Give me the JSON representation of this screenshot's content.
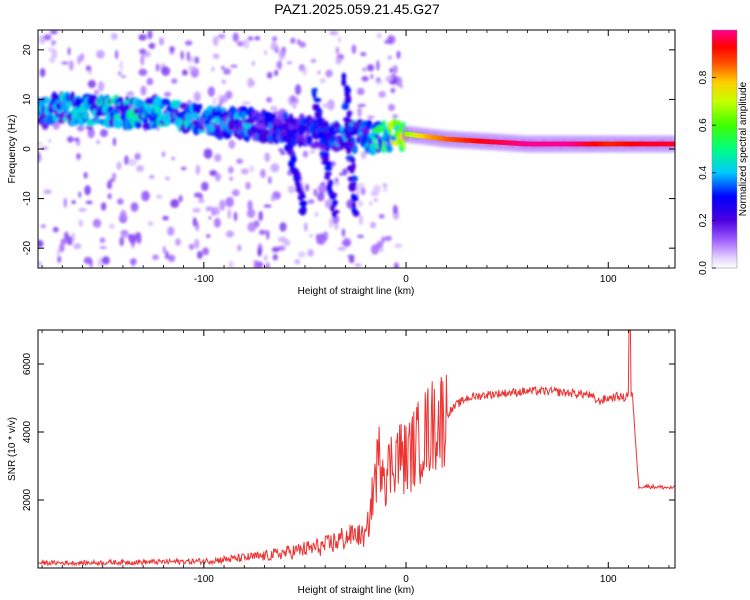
{
  "title": "PAZ1.2025.059.21.45.G27",
  "colorbar": {
    "label": "Normalized spectral amplitude",
    "ticks": [
      "0.0",
      "0.2",
      "0.4",
      "0.6",
      "0.8"
    ],
    "tick_values": [
      0.0,
      0.2,
      0.4,
      0.6,
      0.8
    ],
    "range": [
      0,
      1
    ]
  },
  "chart_data": [
    {
      "type": "heatmap",
      "xlabel": "Height of straight line (km)",
      "ylabel": "Frequency (Hz)",
      "xlim": [
        -182,
        133
      ],
      "ylim": [
        -24,
        24
      ],
      "xticks": [
        -100,
        0,
        100
      ],
      "yticks": [
        -20,
        -10,
        0,
        10,
        20
      ],
      "xtick_labels": [
        "-100",
        "0",
        "100"
      ],
      "ytick_labels": [
        "-20",
        "-10",
        "0",
        "10",
        "20"
      ],
      "ridge": {
        "x": [
          -180,
          -160,
          -140,
          -120,
          -100,
          -80,
          -60,
          -40,
          -20,
          -10,
          0,
          10,
          20,
          40,
          60,
          80,
          100,
          120,
          133
        ],
        "y": [
          8,
          8,
          7.5,
          7,
          6,
          5,
          4,
          3,
          2.5,
          2.5,
          3,
          2.5,
          2,
          1.5,
          1,
          1,
          1,
          1,
          1
        ],
        "amplitude": [
          0.3,
          0.35,
          0.35,
          0.35,
          0.3,
          0.3,
          0.25,
          0.25,
          0.35,
          0.5,
          0.65,
          0.8,
          0.85,
          0.95,
          1.0,
          1.0,
          0.9,
          0.95,
          0.95
        ]
      },
      "branches": [
        {
          "x": [
            -60,
            -50
          ],
          "y": [
            4,
            -13
          ]
        },
        {
          "x": [
            -45,
            -35
          ],
          "y": [
            12,
            -14
          ]
        },
        {
          "x": [
            -30,
            -25
          ],
          "y": [
            14,
            -14
          ]
        }
      ]
    },
    {
      "type": "line",
      "xlabel": "Height of straight line (km)",
      "ylabel": "SNR (10 * v/v)",
      "xlim": [
        -182,
        133
      ],
      "ylim": [
        0,
        7000
      ],
      "xticks": [
        -100,
        0,
        100
      ],
      "yticks": [
        2000,
        4000,
        6000
      ],
      "xtick_labels": [
        "-100",
        "0",
        "100"
      ],
      "ytick_labels": [
        "2000",
        "4000",
        "6000"
      ],
      "color": "#ee3333",
      "series": [
        {
          "x": [
            -182,
            -160,
            -140,
            -120,
            -100,
            -90,
            -80,
            -70,
            -60,
            -50,
            -40,
            -30,
            -25,
            -20,
            -18,
            -15,
            -12,
            -10,
            -5,
            0,
            5,
            10,
            15,
            20,
            25,
            30,
            40,
            50,
            60,
            70,
            80,
            90,
            95,
            100,
            105,
            108,
            110,
            112,
            115,
            120,
            133
          ],
          "y": [
            150,
            150,
            170,
            180,
            200,
            250,
            300,
            350,
            450,
            550,
            650,
            900,
            1000,
            900,
            1500,
            2800,
            3500,
            2700,
            3400,
            3200,
            3600,
            4000,
            4300,
            4500,
            4800,
            5000,
            5100,
            5150,
            5200,
            5200,
            5150,
            5100,
            4900,
            5000,
            5050,
            5000,
            5150,
            5050,
            2400,
            2400,
            2350
          ]
        }
      ]
    }
  ]
}
